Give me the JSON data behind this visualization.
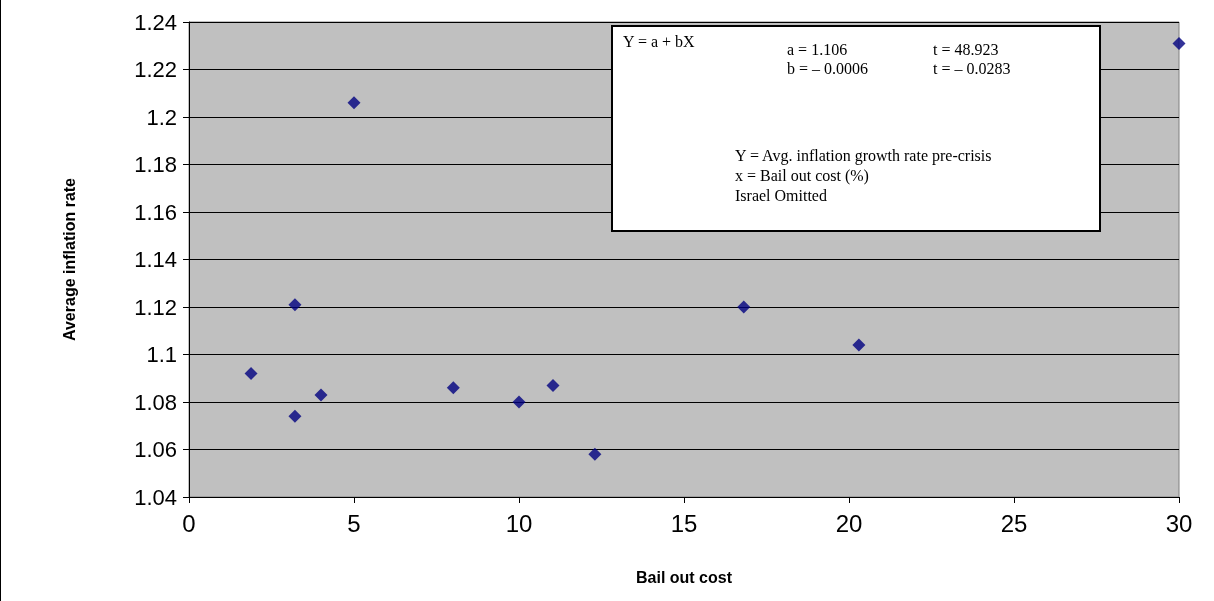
{
  "chart_data": {
    "type": "scatter",
    "xlabel": "Bail out cost",
    "ylabel": "Average inflation rate",
    "x": [
      1.88,
      3.21,
      3.21,
      4.0,
      5.0,
      8.01,
      10.0,
      11.03,
      12.3,
      16.81,
      20.3,
      30
    ],
    "series": [
      {
        "color": "#000080",
        "values": [
          1.092,
          1.121,
          1.074,
          1.083,
          1.206,
          1.086,
          1.08,
          1.087,
          1.058,
          1.12,
          1.104,
          1.231
        ]
      }
    ],
    "xlim": [
      0,
      30
    ],
    "xticks": [
      0,
      5,
      10,
      15,
      20,
      25,
      30
    ],
    "ylim": [
      1.04,
      1.24
    ],
    "yticks": [
      1.04,
      1.06,
      1.08,
      1.1,
      1.12,
      1.14,
      1.16,
      1.18,
      1.2,
      1.22,
      1.24
    ],
    "grid": "y",
    "marker": "diamond",
    "annotations": [
      "Y = a + bX",
      "a = 1.106",
      "t = 48.923",
      "b = – 0.0006",
      "t = – 0.0283",
      "Y = Avg. inflation growth rate pre-crisis",
      "x = Bail out cost (%)",
      "Israel Omitted"
    ]
  }
}
